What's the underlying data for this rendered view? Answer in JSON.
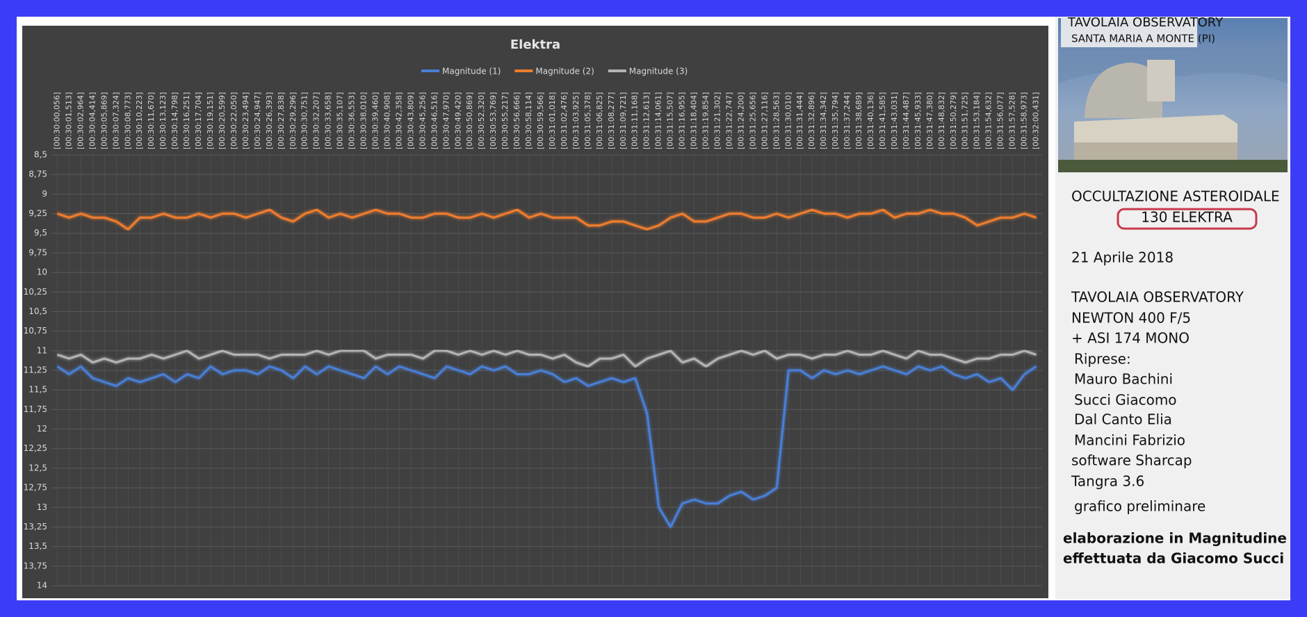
{
  "chart_data": {
    "type": "line",
    "title": "Elektra",
    "categories": [
      "[00:30:00,056]",
      "[00:30:01,513]",
      "[00:30:02,964]",
      "[00:30:04,414]",
      "[00:30:05,869]",
      "[00:30:07,324]",
      "[00:30:08,773]",
      "[00:30:10,223]",
      "[00:30:11,670]",
      "[00:30:13,123]",
      "[00:30:14,798]",
      "[00:30:16,251]",
      "[00:30:17,704]",
      "[00:30:19,151]",
      "[00:30:20,599]",
      "[00:30:22,050]",
      "[00:30:23,494]",
      "[00:30:24,947]",
      "[00:30:26,393]",
      "[00:30:27,838]",
      "[00:30:29,296]",
      "[00:30:30,751]",
      "[00:30:32,207]",
      "[00:30:33,658]",
      "[00:30:35,107]",
      "[00:30:36,553]",
      "[00:30:38,010]",
      "[00:30:39,460]",
      "[00:30:40,908]",
      "[00:30:42,358]",
      "[00:30:43,809]",
      "[00:30:45,256]",
      "[00:30:46,516]",
      "[00:30:47,970]",
      "[00:30:49,420]",
      "[00:30:50,869]",
      "[00:30:52,320]",
      "[00:30:53,769]",
      "[00:30:55,217]",
      "[00:30:56,666]",
      "[00:30:58,114]",
      "[00:30:59,566]",
      "[00:31:01,018]",
      "[00:31:02,476]",
      "[00:31:03,925]",
      "[00:31:05,378]",
      "[00:31:06,825]",
      "[00:31:08,277]",
      "[00:31:09,721]",
      "[00:31:11,168]",
      "[00:31:12,613]",
      "[00:31:14,061]",
      "[00:31:15,507]",
      "[00:31:16,955]",
      "[00:31:18,404]",
      "[00:31:19,854]",
      "[00:31:21,302]",
      "[00:31:22,747]",
      "[00:31:24,200]",
      "[00:31:25,656]",
      "[00:31:27,116]",
      "[00:31:28,563]",
      "[00:31:30,010]",
      "[00:31:31,444]",
      "[00:31:32,896]",
      "[00:31:34,342]",
      "[00:31:35,794]",
      "[00:31:37,244]",
      "[00:31:38,689]",
      "[00:31:40,136]",
      "[00:31:41,585]",
      "[00:31:43,031]",
      "[00:31:44,487]",
      "[00:31:45,933]",
      "[00:31:47,380]",
      "[00:31:48,832]",
      "[00:31:50,279]",
      "[00:31:51,725]",
      "[00:31:53,184]",
      "[00:31:54,632]",
      "[00:31:56,077]",
      "[00:31:57,528]",
      "[00:31:58,973]",
      "[00:32:00,431]"
    ],
    "series": [
      {
        "name": "Magnitude (1)",
        "color": "#4a7fd6",
        "values": [
          11.2,
          11.3,
          11.2,
          11.35,
          11.4,
          11.45,
          11.35,
          11.4,
          11.35,
          11.3,
          11.4,
          11.3,
          11.35,
          11.2,
          11.3,
          11.25,
          11.25,
          11.3,
          11.2,
          11.25,
          11.35,
          11.2,
          11.3,
          11.2,
          11.25,
          11.3,
          11.35,
          11.2,
          11.3,
          11.2,
          11.25,
          11.3,
          11.35,
          11.2,
          11.25,
          11.3,
          11.2,
          11.25,
          11.2,
          11.3,
          11.3,
          11.25,
          11.3,
          11.4,
          11.35,
          11.45,
          11.4,
          11.35,
          11.4,
          11.35,
          11.8,
          13.0,
          13.25,
          12.95,
          12.9,
          12.95,
          12.95,
          12.85,
          12.8,
          12.9,
          12.85,
          12.75,
          11.25,
          11.25,
          11.35,
          11.25,
          11.3,
          11.25,
          11.3,
          11.25,
          11.2,
          11.25,
          11.3,
          11.2,
          11.25,
          11.2,
          11.3,
          11.35,
          11.3,
          11.4,
          11.35,
          11.5,
          11.3,
          11.2
        ]
      },
      {
        "name": "Magnitude (2)",
        "color": "#f07d2e",
        "values": [
          9.25,
          9.3,
          9.25,
          9.3,
          9.3,
          9.35,
          9.45,
          9.3,
          9.3,
          9.25,
          9.3,
          9.3,
          9.25,
          9.3,
          9.25,
          9.25,
          9.3,
          9.25,
          9.2,
          9.3,
          9.35,
          9.25,
          9.2,
          9.3,
          9.25,
          9.3,
          9.25,
          9.2,
          9.25,
          9.25,
          9.3,
          9.3,
          9.25,
          9.25,
          9.3,
          9.3,
          9.25,
          9.3,
          9.25,
          9.2,
          9.3,
          9.25,
          9.3,
          9.3,
          9.3,
          9.4,
          9.4,
          9.35,
          9.35,
          9.4,
          9.45,
          9.4,
          9.3,
          9.25,
          9.35,
          9.35,
          9.3,
          9.25,
          9.25,
          9.3,
          9.3,
          9.25,
          9.3,
          9.25,
          9.2,
          9.25,
          9.25,
          9.3,
          9.25,
          9.25,
          9.2,
          9.3,
          9.25,
          9.25,
          9.2,
          9.25,
          9.25,
          9.3,
          9.4,
          9.35,
          9.3,
          9.3,
          9.25,
          9.3
        ]
      },
      {
        "name": "Magnitude (3)",
        "color": "#b4b4b4",
        "values": [
          11.05,
          11.1,
          11.05,
          11.15,
          11.1,
          11.15,
          11.1,
          11.1,
          11.05,
          11.1,
          11.05,
          11.0,
          11.1,
          11.05,
          11.0,
          11.05,
          11.05,
          11.05,
          11.1,
          11.05,
          11.05,
          11.05,
          11.0,
          11.05,
          11.0,
          11.0,
          11.0,
          11.1,
          11.05,
          11.05,
          11.05,
          11.1,
          11.0,
          11.0,
          11.05,
          11.0,
          11.05,
          11.0,
          11.05,
          11.0,
          11.05,
          11.05,
          11.1,
          11.05,
          11.15,
          11.2,
          11.1,
          11.1,
          11.05,
          11.2,
          11.1,
          11.05,
          11.0,
          11.15,
          11.1,
          11.2,
          11.1,
          11.05,
          11.0,
          11.05,
          11.0,
          11.1,
          11.05,
          11.05,
          11.1,
          11.05,
          11.05,
          11.0,
          11.05,
          11.05,
          11.0,
          11.05,
          11.1,
          11.0,
          11.05,
          11.05,
          11.1,
          11.15,
          11.1,
          11.1,
          11.05,
          11.05,
          11.0,
          11.05
        ]
      }
    ],
    "ylim": [
      8.5,
      14
    ],
    "y_reversed": true,
    "yticks": [
      {
        "value": 8.5,
        "label": "8,5"
      },
      {
        "value": 8.75,
        "label": "8,75"
      },
      9,
      {
        "value": 9.25,
        "label": "9,25"
      },
      {
        "value": 9.5,
        "label": "9,5"
      },
      {
        "value": 9.75,
        "label": "9,75"
      },
      10,
      {
        "value": 10.25,
        "label": "10,25"
      },
      {
        "value": 10.5,
        "label": "10,5"
      },
      {
        "value": 10.75,
        "label": "10,75"
      },
      11,
      {
        "value": 11.25,
        "label": "11,25"
      },
      {
        "value": 11.5,
        "label": "11,5"
      },
      {
        "value": 11.75,
        "label": "11,75"
      },
      12,
      {
        "value": 12.25,
        "label": "12,25"
      },
      {
        "value": 12.5,
        "label": "12,5"
      },
      {
        "value": 12.75,
        "label": "12,75"
      },
      13,
      {
        "value": 13.25,
        "label": "13,25"
      },
      {
        "value": 13.5,
        "label": "13,5"
      },
      {
        "value": 13.75,
        "label": "13,75"
      },
      14
    ],
    "grid": true,
    "legend": "top"
  },
  "sidebar": {
    "photo_title": "TAVOLAIA OBSERVATORY",
    "photo_subtitle": "SANTA MARIA A MONTE (PI)",
    "heading": "OCCULTAZIONE ASTEROIDALE",
    "target": "130 ELEKTRA",
    "date": "21 Aprile 2018",
    "details": [
      "TAVOLAIA OBSERVATORY",
      "NEWTON 400 F/5",
      "+ ASI 174 MONO",
      "Riprese:",
      "Mauro Bachini",
      "Succi Giacomo",
      "Dal Canto Elia",
      "Mancini Fabrizio",
      "software Sharcap",
      "Tangra  3.6",
      "grafico preliminare"
    ],
    "credit": [
      "elaborazione in Magnitudine",
      "effettuata da Giacomo Succi"
    ]
  }
}
